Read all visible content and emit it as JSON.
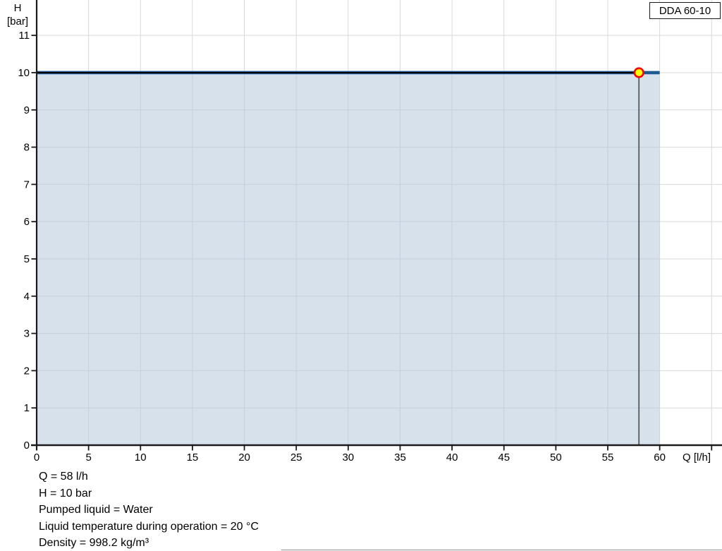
{
  "legend": {
    "label": "DDA 60-10"
  },
  "axes": {
    "y_title_line1": "H",
    "y_title_line2": "[bar]",
    "x_title": "Q [l/h]"
  },
  "annotations": {
    "lines": [
      "Q = 58 l/h",
      "H = 10 bar",
      "Pumped liquid = Water",
      "Liquid temperature during operation = 20 °C",
      "Density = 998.2 kg/m³"
    ]
  },
  "chart_data": {
    "type": "line",
    "xlabel": "Q [l/h]",
    "ylabel": "H [bar]",
    "xlim": [
      0,
      66
    ],
    "ylim": [
      0,
      11.95
    ],
    "x_ticks": [
      0,
      5,
      10,
      15,
      20,
      25,
      30,
      35,
      40,
      45,
      50,
      55,
      60
    ],
    "x_gridlines": [
      0,
      5,
      10,
      15,
      20,
      25,
      30,
      35,
      40,
      45,
      50,
      55,
      60,
      65
    ],
    "y_ticks": [
      0,
      1,
      2,
      3,
      4,
      5,
      6,
      7,
      8,
      9,
      10,
      11
    ],
    "y_gridlines": [
      0,
      1,
      2,
      3,
      4,
      5,
      6,
      7,
      8,
      9,
      10,
      11
    ],
    "grid": true,
    "grid_color": "#d9d9d9",
    "axis_color": "#1a1a1a",
    "legend_position": "top-right",
    "series": [
      {
        "name": "DDA 60-10",
        "x": [
          0,
          60
        ],
        "y": [
          10,
          10
        ],
        "color": "#1d5893",
        "fill_below": true,
        "fill_color": "#b7c9dc",
        "fill_opacity": 0.55
      }
    ],
    "operating_point": {
      "Q": 58,
      "H": 10,
      "marker_fill": "#ffff00",
      "marker_stroke": "#ff0000",
      "h_guide_color": "#000000",
      "v_guide_color": "#5a5a5a"
    }
  }
}
